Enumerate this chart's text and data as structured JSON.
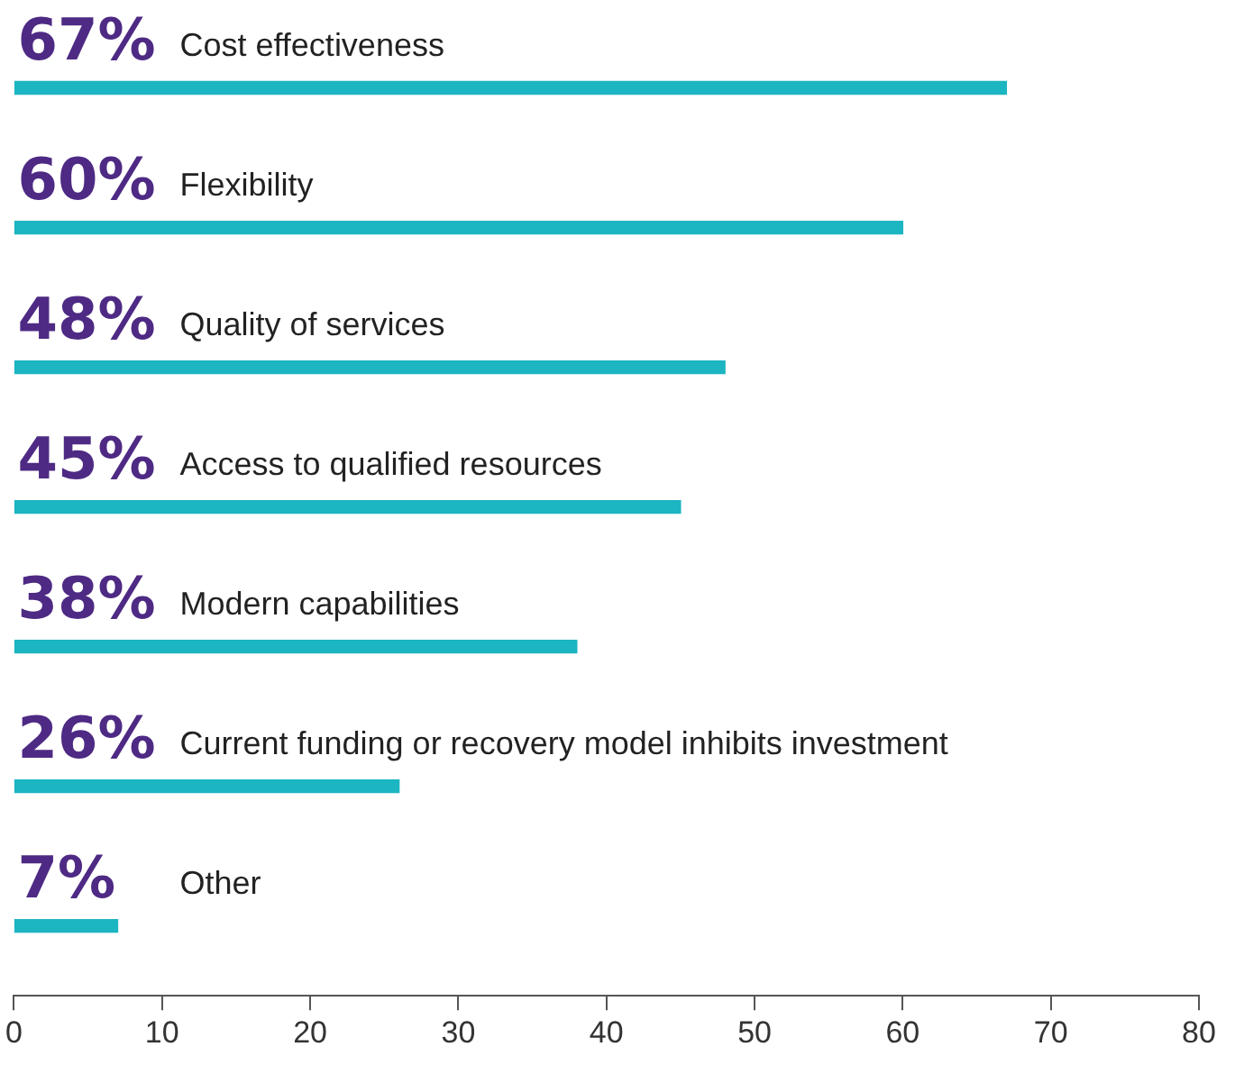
{
  "chart_data": {
    "type": "bar",
    "orientation": "horizontal",
    "categories": [
      "Cost effectiveness",
      "Flexibility",
      "Quality of services",
      "Access to qualified resources",
      "Modern capabilities",
      "Current funding or recovery model inhibits investment",
      "Other"
    ],
    "values": [
      67,
      60,
      48,
      45,
      38,
      26,
      7
    ],
    "value_labels": [
      "67%",
      "60%",
      "48%",
      "45%",
      "38%",
      "26%",
      "7%"
    ],
    "color": "#1cb5c2",
    "xlim": [
      0,
      80
    ],
    "xticks": [
      0,
      10,
      20,
      30,
      40,
      50,
      60,
      70,
      80
    ],
    "grid": false,
    "legend": false
  }
}
